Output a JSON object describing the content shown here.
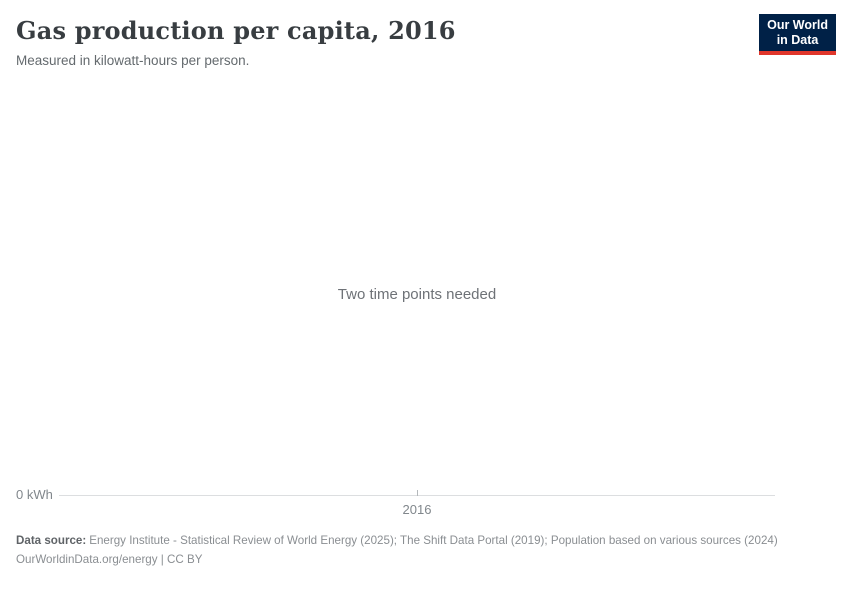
{
  "header": {
    "title": "Gas production per capita, 2016",
    "subtitle": "Measured in kilowatt-hours per person.",
    "logo": {
      "line1": "Our World",
      "line2": "in Data"
    }
  },
  "chart": {
    "message": "Two time points needed",
    "y_axis_label": "0 kWh",
    "x_tick_label": "2016"
  },
  "footer": {
    "data_source_label": "Data source:",
    "data_source_text": "Energy Institute - Statistical Review of World Energy (2025); The Shift Data Portal (2019); Population based on various sources (2024)",
    "attribution": "OurWorldinData.org/energy | CC BY"
  },
  "colors": {
    "logo_navy": "#002147",
    "logo_red": "#e0362b",
    "title_text": "#383d41",
    "muted_text": "#8a8e92",
    "axis_text": "#81878c",
    "axis_line": "#dcdee0",
    "background": "#ffffff"
  },
  "chart_data": {
    "type": "line",
    "title": "Gas production per capita, 2016",
    "subtitle": "Measured in kilowatt-hours per person.",
    "x_tick_labels": [
      "2016"
    ],
    "y_tick_labels": [
      "0 kWh"
    ],
    "x": [
      2016
    ],
    "series": [],
    "annotations": [
      "Two time points needed"
    ],
    "grid": false,
    "legend": "none",
    "note": "No data series plotted; empty chart showing 'Two time points needed' message above the x-axis baseline at 0 kWh"
  }
}
